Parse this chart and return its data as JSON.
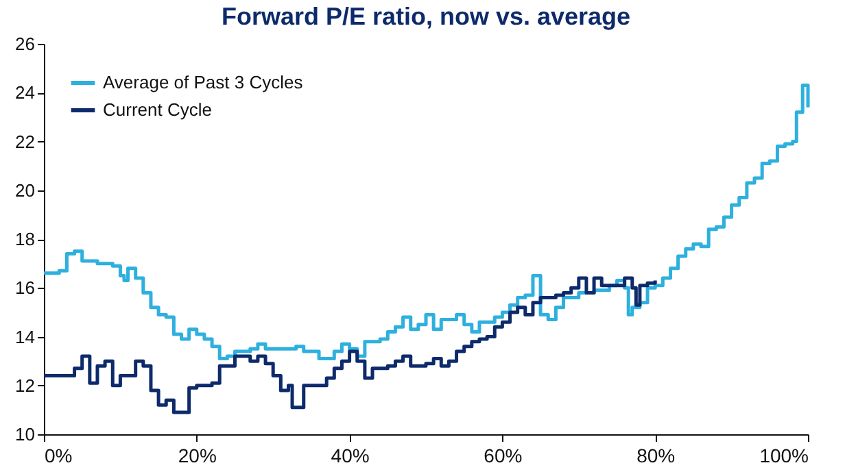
{
  "chart_data": {
    "type": "step",
    "title": "Forward P/E ratio, now vs. average",
    "legend": "top left",
    "grid": false,
    "xlim": [
      0,
      100
    ],
    "xticks": [
      {
        "value": 0,
        "label": "0%"
      },
      {
        "value": 20,
        "label": "20%"
      },
      {
        "value": 40,
        "label": "40%"
      },
      {
        "value": 60,
        "label": "60%"
      },
      {
        "value": 80,
        "label": "80%"
      },
      {
        "value": 100,
        "label": "100%"
      }
    ],
    "ylim": [
      10,
      26
    ],
    "yticks": [
      10,
      12,
      14,
      16,
      18,
      20,
      22,
      24,
      26
    ],
    "series": [
      {
        "name": "Average of Past 3 Cycles",
        "color": "#2eb0de",
        "x": [
          0,
          2,
          3,
          4,
          5,
          7,
          9,
          10,
          10.5,
          11,
          12,
          13,
          14,
          15,
          16,
          17,
          18,
          19,
          20,
          21,
          22,
          23,
          24,
          25,
          27,
          28,
          29,
          31,
          33,
          34,
          36,
          38,
          39,
          40,
          41,
          42,
          44,
          45,
          46,
          47,
          48,
          49,
          50,
          51,
          52,
          54,
          55,
          56,
          57,
          59,
          60,
          61,
          62,
          63,
          64,
          65,
          66,
          67,
          68,
          70,
          72,
          74,
          75,
          76,
          76.5,
          77,
          78,
          79,
          80,
          81,
          82,
          83,
          84,
          85,
          86,
          87,
          88,
          89,
          90,
          91,
          92,
          93,
          94,
          95,
          96,
          97,
          98,
          98.5,
          99.3,
          100
        ],
        "values": [
          16.6,
          16.7,
          17.4,
          17.5,
          17.1,
          17.0,
          16.9,
          16.5,
          16.3,
          16.8,
          16.4,
          15.8,
          15.2,
          14.9,
          14.8,
          14.1,
          13.9,
          14.3,
          14.1,
          13.9,
          13.6,
          13.1,
          13.2,
          13.4,
          13.5,
          13.7,
          13.5,
          13.5,
          13.6,
          13.4,
          13.1,
          13.4,
          13.7,
          13.5,
          13.2,
          13.8,
          13.9,
          14.2,
          14.4,
          14.8,
          14.3,
          14.5,
          14.9,
          14.3,
          14.7,
          14.9,
          14.5,
          14.2,
          14.6,
          14.8,
          15.0,
          15.3,
          15.6,
          15.7,
          16.5,
          14.9,
          14.7,
          15.2,
          15.6,
          15.8,
          15.9,
          16.1,
          16.3,
          16.0,
          14.9,
          15.2,
          15.4,
          16.0,
          16.1,
          16.4,
          16.8,
          17.3,
          17.6,
          17.8,
          17.7,
          18.4,
          18.5,
          18.9,
          19.4,
          19.7,
          20.3,
          20.5,
          21.1,
          21.2,
          21.8,
          21.9,
          22.0,
          23.2,
          24.3,
          23.4
        ]
      },
      {
        "name": "Current Cycle",
        "color": "#0d2a6b",
        "x": [
          0,
          3,
          4,
          5,
          6,
          7,
          8,
          9,
          10,
          12,
          13,
          14,
          15,
          16,
          17,
          18,
          19,
          20,
          22,
          23,
          25,
          27,
          28,
          29,
          30,
          31,
          32,
          32.5,
          33,
          34,
          36,
          37,
          38,
          39,
          40,
          41,
          42,
          43,
          45,
          46,
          47,
          48,
          50,
          51,
          52,
          53,
          54,
          55,
          56,
          57,
          58,
          59,
          60,
          61,
          62,
          63,
          64,
          65,
          67,
          68,
          69,
          70,
          71,
          72,
          73,
          75,
          76,
          77,
          77.5,
          78,
          79,
          80
        ],
        "values": [
          12.4,
          12.4,
          12.7,
          13.2,
          12.1,
          12.8,
          13.0,
          12.0,
          12.4,
          13.0,
          12.8,
          11.8,
          11.2,
          11.4,
          10.9,
          10.9,
          11.9,
          12.0,
          12.1,
          12.8,
          13.2,
          13.0,
          13.2,
          12.9,
          12.4,
          11.8,
          12.0,
          11.1,
          11.1,
          12.0,
          12.0,
          12.3,
          12.7,
          13.0,
          13.4,
          13.0,
          12.3,
          12.7,
          12.8,
          13.0,
          13.2,
          12.8,
          12.9,
          13.1,
          12.8,
          13.0,
          13.4,
          13.6,
          13.8,
          13.9,
          14.0,
          14.4,
          14.6,
          15.0,
          15.2,
          14.9,
          15.4,
          15.6,
          15.7,
          15.8,
          16.0,
          16.4,
          15.8,
          16.4,
          16.1,
          16.1,
          16.4,
          16.0,
          15.3,
          16.1,
          16.2,
          16.3
        ]
      }
    ]
  }
}
